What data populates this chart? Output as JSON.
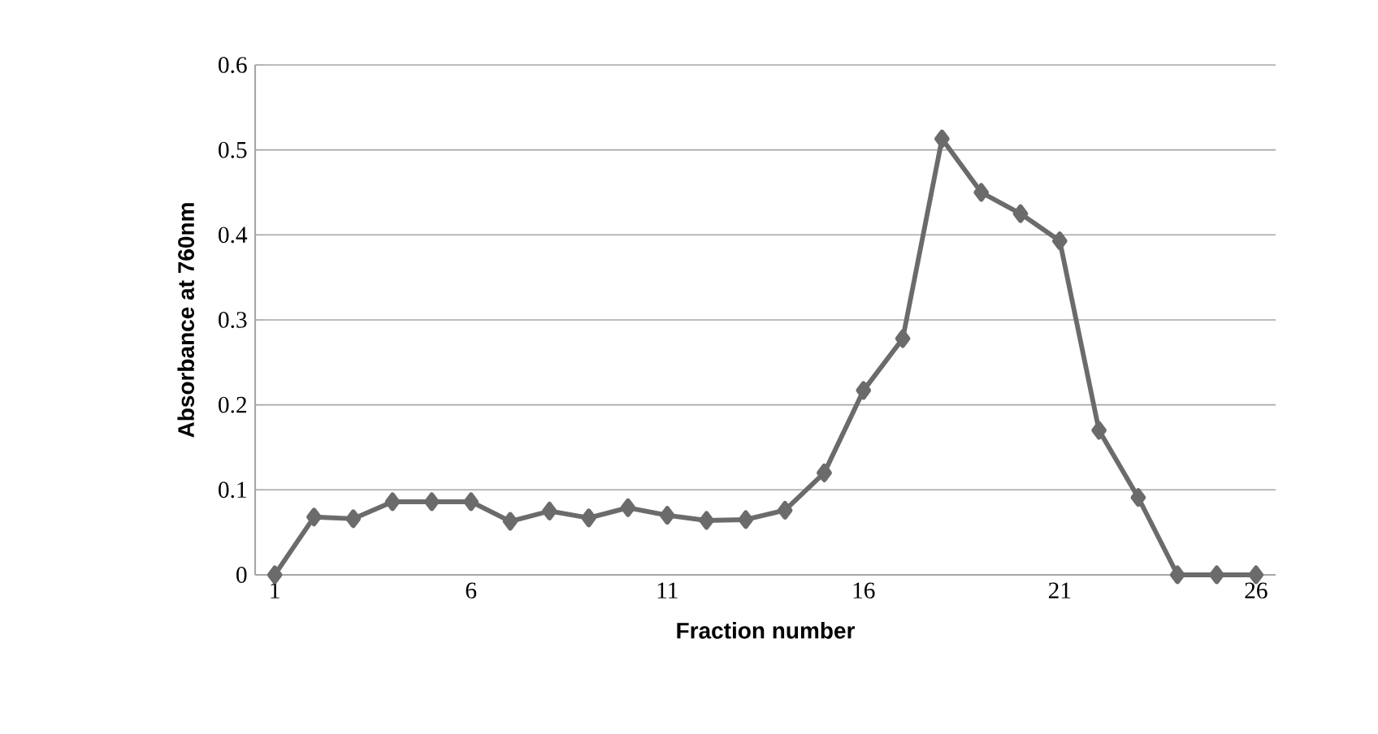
{
  "chart_data": {
    "type": "line",
    "xlabel": "Fraction number",
    "ylabel": "Absorbance at 760nm",
    "categories": [
      "1",
      null,
      null,
      null,
      null,
      "6",
      null,
      null,
      null,
      null,
      "11",
      null,
      null,
      null,
      null,
      "16",
      null,
      null,
      null,
      null,
      "21",
      null,
      null,
      null,
      null,
      "26"
    ],
    "series": [
      {
        "color": "#6b6b6b",
        "values": [
          0,
          0.068,
          0.066,
          0.086,
          0.086,
          0.086,
          0.063,
          0.075,
          0.067,
          0.079,
          0.07,
          0.064,
          0.065,
          0.076,
          0.12,
          0.217,
          0.278,
          0.513,
          0.45,
          0.425,
          0.393,
          0.17,
          0.091,
          0,
          0,
          0
        ]
      }
    ],
    "ylim": [
      0,
      0.6
    ],
    "yticks": [
      0,
      0.1,
      0.2,
      0.3,
      0.4,
      0.5,
      0.6
    ],
    "grid": "y",
    "marker": "diamond",
    "line_style": "solid"
  }
}
